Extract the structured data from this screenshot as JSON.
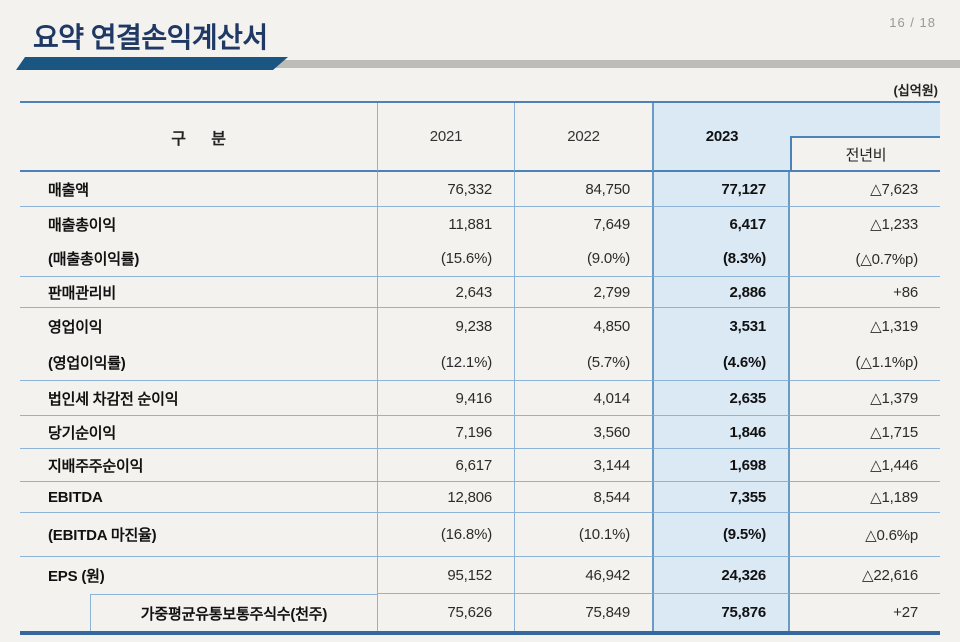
{
  "slide": {
    "title": "요약 연결손익계산서",
    "page_indicator": "16 / 18",
    "unit_label": "(십억원)"
  },
  "colors": {
    "title_navy": "#1f3864",
    "title_bar_blue": "#1b5581",
    "title_bar_gray": "#bdbcb7",
    "highlight_column_blue": "#dbe9f5",
    "grid_line_blue": "#8db3d6",
    "grid_line_strong_blue": "#4b82b8",
    "table_bottom_navy": "#35699e"
  },
  "table": {
    "header": {
      "category": "구      분",
      "y2021": "2021",
      "y2022": "2022",
      "y2023": "2023",
      "yoy": "전년비"
    },
    "rows": [
      {
        "label": "매출액",
        "values": [
          "76,332",
          "84,750",
          "77,127",
          "△7,623"
        ]
      },
      {
        "label": "매출총이익",
        "values": [
          "11,881",
          "7,649",
          "6,417",
          "△1,233"
        ],
        "sub_label": "(매출총이익률)",
        "sub_values": [
          "(15.6%)",
          "(9.0%)",
          "(8.3%)",
          "(△0.7%p)"
        ]
      },
      {
        "label": "판매관리비",
        "values": [
          "2,643",
          "2,799",
          "2,886",
          "+86"
        ]
      },
      {
        "label": "영업이익",
        "values": [
          "9,238",
          "4,850",
          "3,531",
          "△1,319"
        ],
        "sub_label": "(영업이익률)",
        "sub_values": [
          "(12.1%)",
          "(5.7%)",
          "(4.6%)",
          "(△1.1%p)"
        ]
      },
      {
        "label": "법인세 차감전 순이익",
        "values": [
          "9,416",
          "4,014",
          "2,635",
          "△1,379"
        ]
      },
      {
        "label": "당기순이익",
        "values": [
          "7,196",
          "3,560",
          "1,846",
          "△1,715"
        ]
      },
      {
        "label": "지배주주순이익",
        "values": [
          "6,617",
          "3,144",
          "1,698",
          "△1,446"
        ]
      },
      {
        "label": "EBITDA",
        "values": [
          "12,806",
          "8,544",
          "7,355",
          "△1,189"
        ]
      },
      {
        "label": "(EBITDA 마진율)",
        "values": [
          "(16.8%)",
          "(10.1%)",
          "(9.5%)",
          "△0.6%p"
        ]
      },
      {
        "label": "EPS (원)",
        "values": [
          "95,152",
          "46,942",
          "24,326",
          "△22,616"
        ]
      },
      {
        "label": "가중평균유통보통주식수(천주)",
        "values": [
          "75,626",
          "75,849",
          "75,876",
          "+27"
        ]
      }
    ]
  }
}
